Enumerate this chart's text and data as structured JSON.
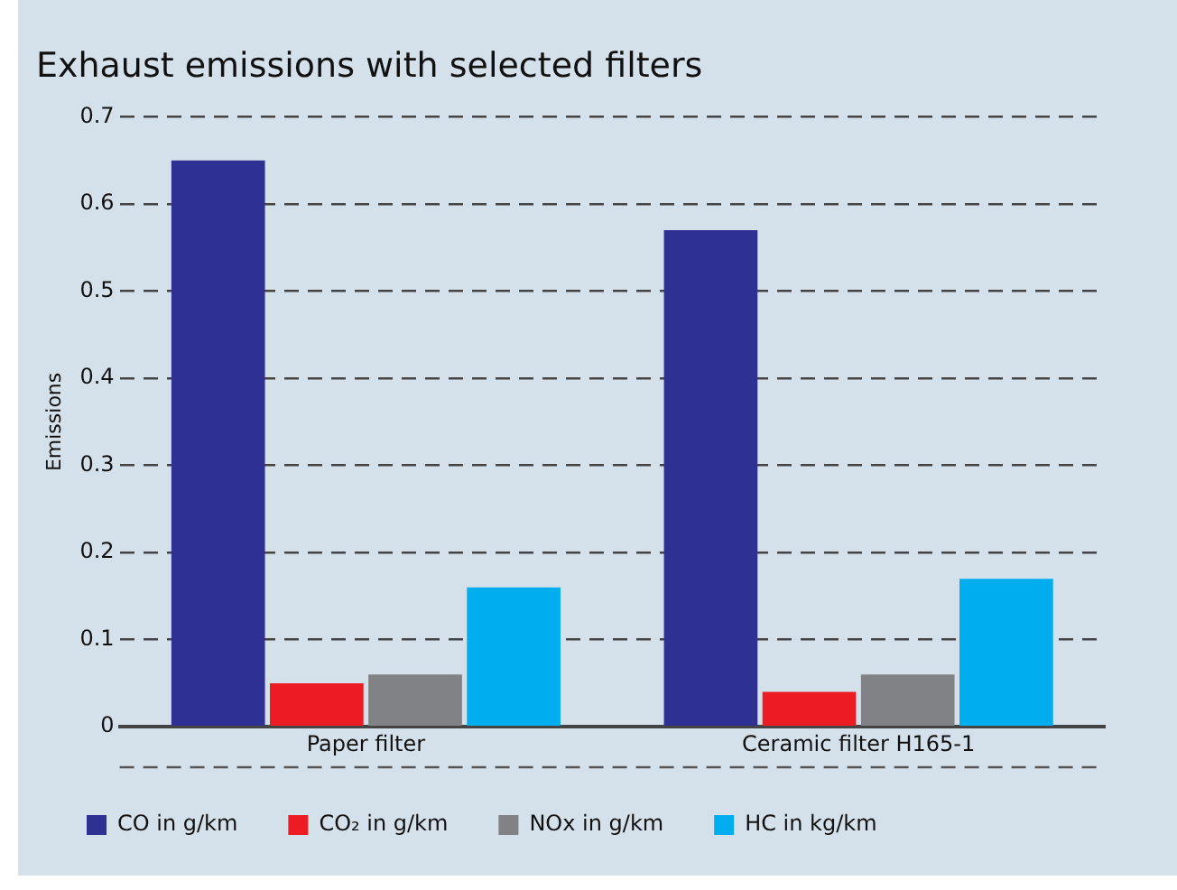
{
  "chart_data": {
    "type": "bar",
    "title": "Exhaust emissions with selected filters",
    "ylabel": "Emissions",
    "categories": [
      "Paper filter",
      "Ceramic filter H165-1"
    ],
    "series": [
      {
        "name": "CO in g/km",
        "color": "#2e3192",
        "values": [
          0.65,
          0.57
        ]
      },
      {
        "name": "CO₂ in g/km",
        "color": "#ed1c24",
        "values": [
          0.05,
          0.04
        ]
      },
      {
        "name": "NOx in g/km",
        "color": "#808285",
        "values": [
          0.06,
          0.06
        ]
      },
      {
        "name": "HC in kg/km",
        "color": "#00aeef",
        "values": [
          0.16,
          0.17
        ]
      }
    ],
    "ylim": [
      0,
      0.7
    ],
    "yticks": [
      0,
      0.1,
      0.2,
      0.3,
      0.4,
      0.5,
      0.6,
      0.7
    ],
    "grid": "y",
    "legend": "bottom"
  }
}
